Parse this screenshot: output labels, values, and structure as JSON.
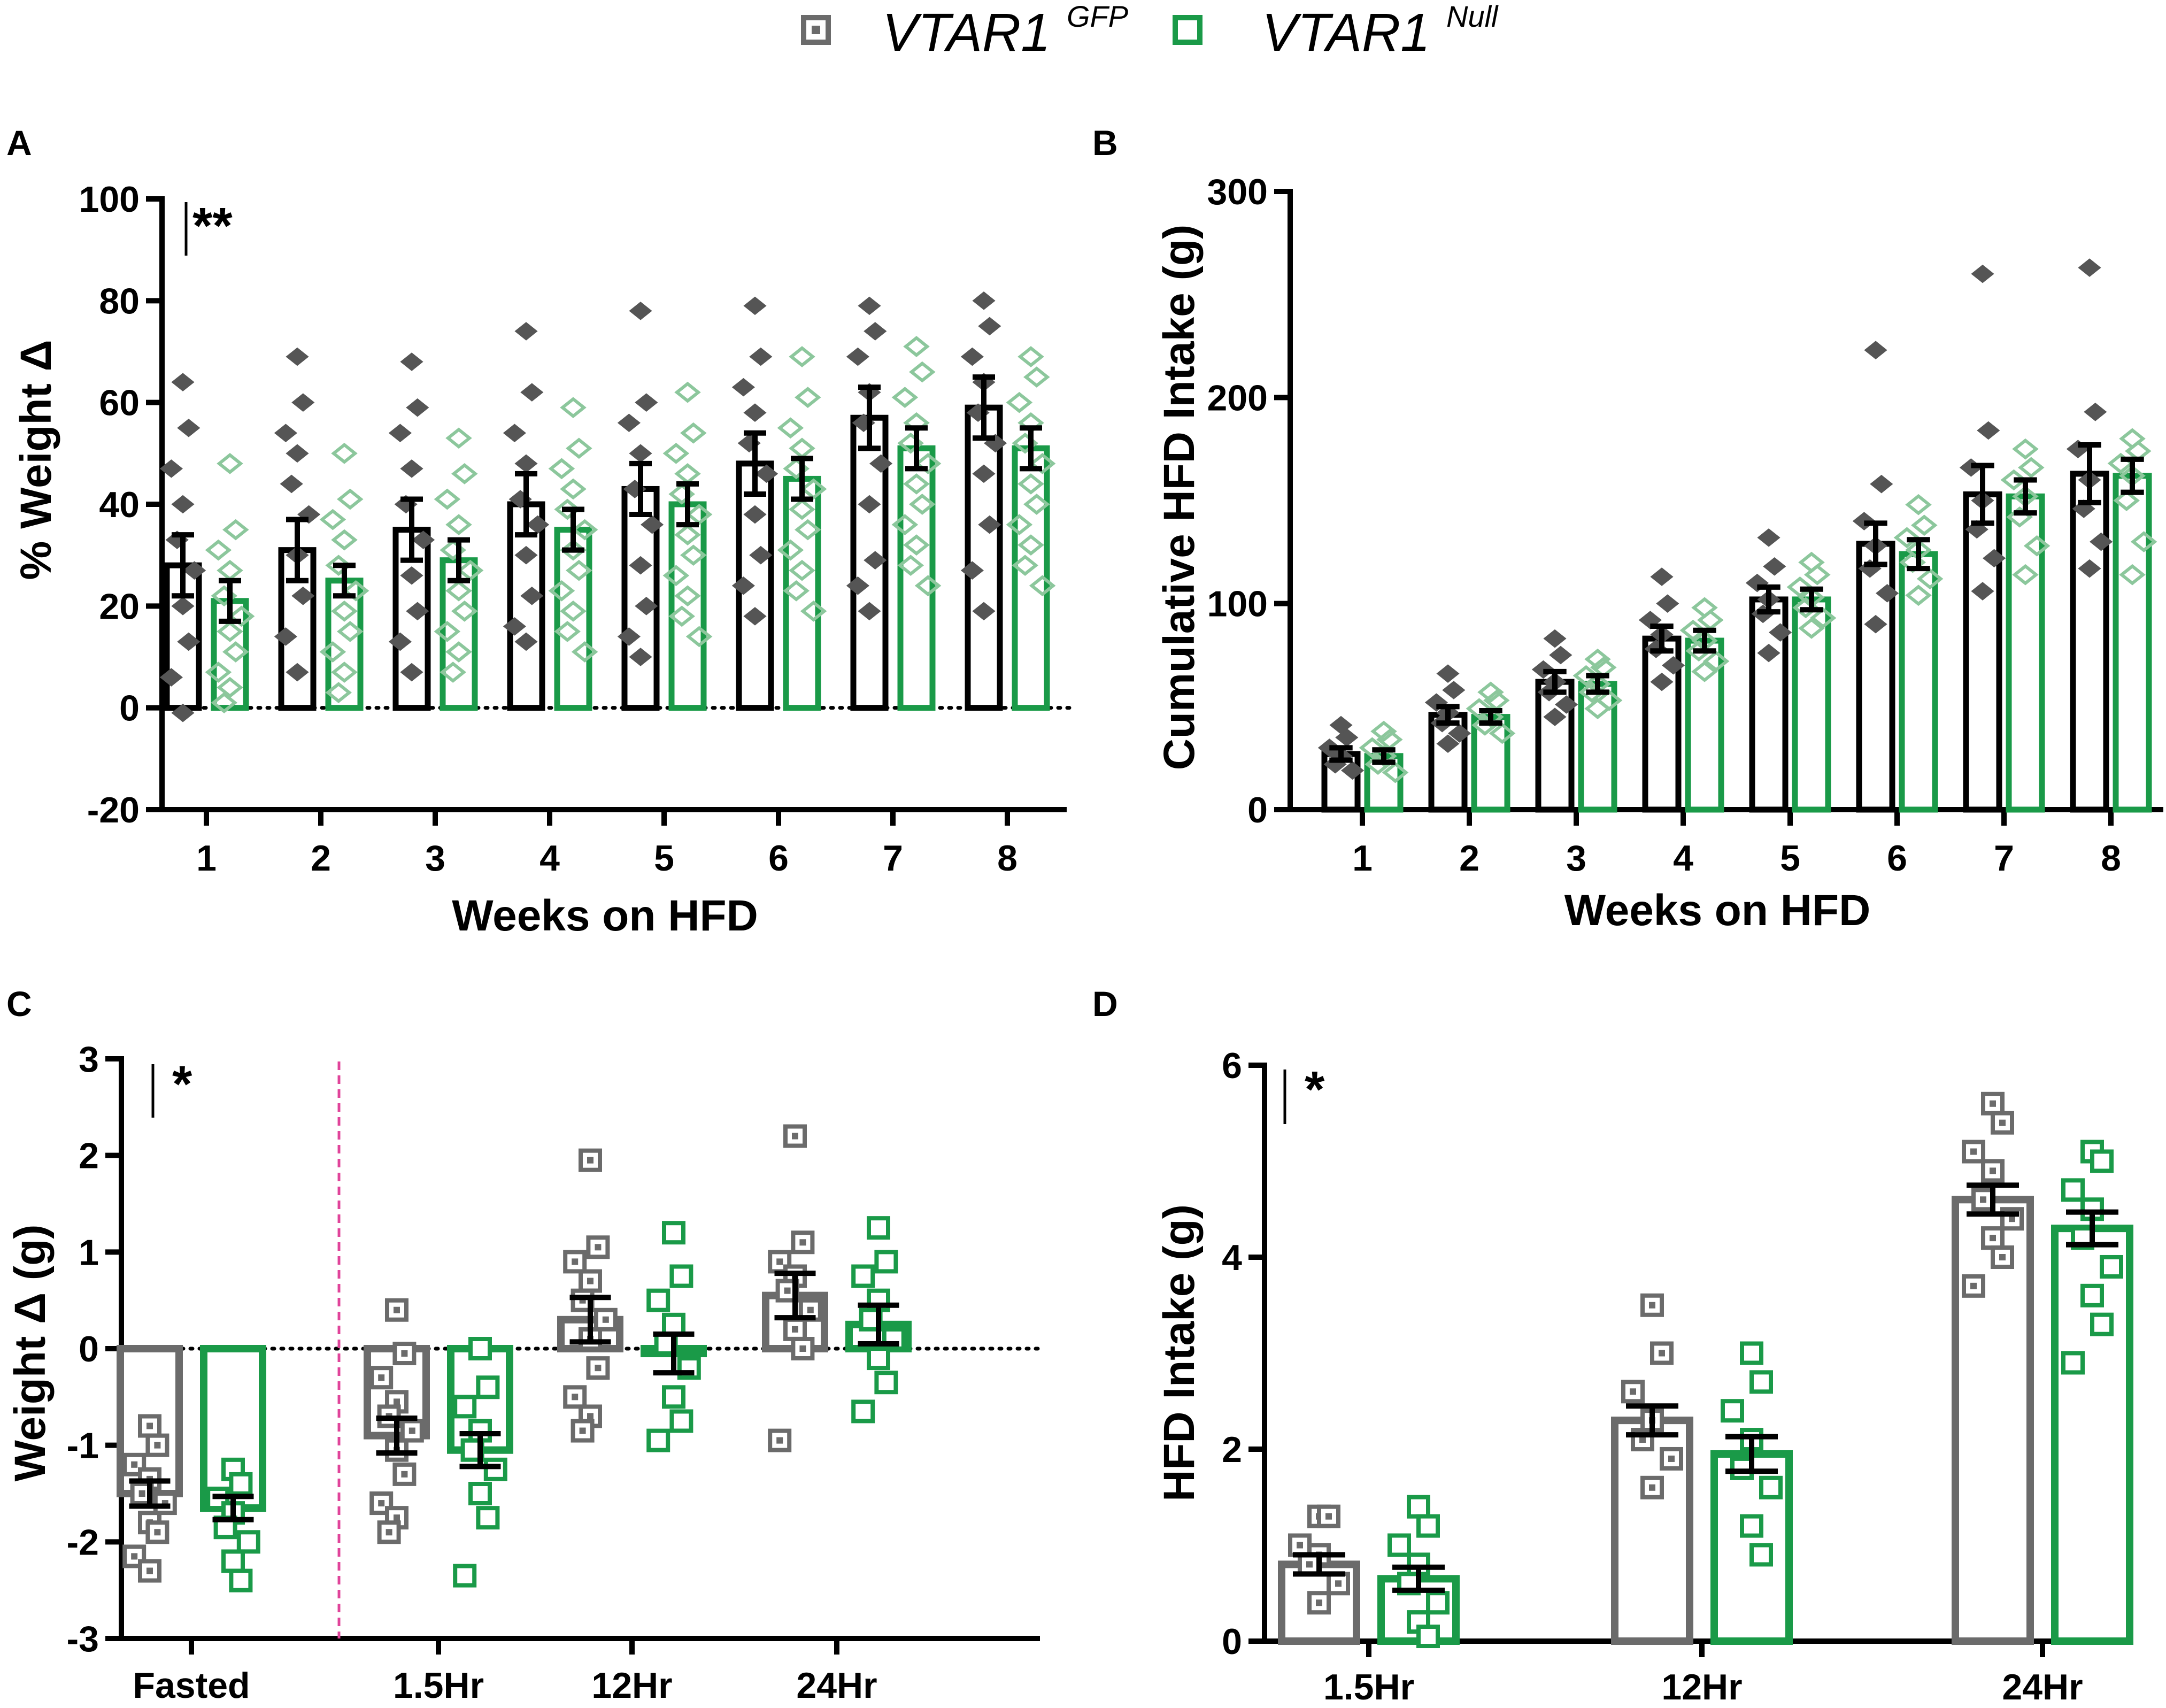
{
  "legend": {
    "items": [
      {
        "name": "VTAR1",
        "sup": "GFP",
        "color": "#6b6b6b"
      },
      {
        "name": "VTAR1",
        "sup": "Null",
        "color": "#1a9a48"
      }
    ]
  },
  "colors": {
    "gfp": "#6b6b6b",
    "null": "#1a9a48",
    "gfp_dot": "#555555",
    "null_dot": "#8cc79c",
    "separator": "#e0449a"
  },
  "chart_data": [
    {
      "panel": "A",
      "type": "bar",
      "ylabel": "% Weight Δ",
      "xlabel": "Weeks on HFD",
      "ylim": [
        -20,
        100
      ],
      "yticks": [
        -20,
        0,
        20,
        40,
        60,
        80,
        100
      ],
      "significance": "**",
      "zero_line": true,
      "categories": [
        "1",
        "2",
        "3",
        "4",
        "5",
        "6",
        "7",
        "8"
      ],
      "series": [
        {
          "name": "VTAR1 GFP",
          "style": "filled",
          "values": [
            28,
            31,
            35,
            40,
            43,
            48,
            57,
            59
          ],
          "errors": [
            6,
            6,
            6,
            6,
            5,
            6,
            6,
            6
          ],
          "points": [
            [
              64,
              55,
              47,
              40,
              33,
              27,
              20,
              13,
              6,
              -1
            ],
            [
              69,
              60,
              54,
              50,
              44,
              38,
              30,
              22,
              14,
              7
            ],
            [
              68,
              59,
              54,
              47,
              40,
              33,
              26,
              19,
              13,
              7
            ],
            [
              74,
              62,
              54,
              48,
              41,
              36,
              30,
              22,
              16,
              13
            ],
            [
              78,
              60,
              56,
              50,
              43,
              36,
              28,
              20,
              14,
              10
            ],
            [
              79,
              69,
              63,
              58,
              52,
              46,
              38,
              30,
              24,
              18
            ],
            [
              79,
              74,
              69,
              62,
              56,
              48,
              40,
              29,
              24,
              19
            ],
            [
              80,
              75,
              69,
              64,
              58,
              52,
              46,
              36,
              27,
              19
            ]
          ]
        },
        {
          "name": "VTAR1 Null",
          "style": "filled",
          "values": [
            21,
            25,
            29,
            35,
            40,
            45,
            51,
            51
          ],
          "errors": [
            4,
            3,
            4,
            4,
            4,
            4,
            4,
            4
          ],
          "points": [
            [
              48,
              35,
              31,
              27,
              22,
              18,
              15,
              11,
              7,
              4,
              1
            ],
            [
              50,
              41,
              37,
              33,
              28,
              23,
              19,
              15,
              11,
              7,
              3
            ],
            [
              53,
              46,
              41,
              36,
              31,
              27,
              23,
              19,
              15,
              11,
              7
            ],
            [
              59,
              51,
              47,
              43,
              39,
              35,
              31,
              27,
              23,
              19,
              15,
              11
            ],
            [
              62,
              54,
              50,
              46,
              42,
              38,
              34,
              30,
              26,
              22,
              18,
              14
            ],
            [
              69,
              61,
              55,
              51,
              47,
              43,
              39,
              35,
              31,
              27,
              23,
              19
            ],
            [
              71,
              66,
              61,
              56,
              52,
              48,
              44,
              40,
              36,
              32,
              28,
              24
            ],
            [
              69,
              65,
              60,
              56,
              52,
              48,
              44,
              40,
              36,
              32,
              28,
              24
            ]
          ]
        }
      ]
    },
    {
      "panel": "B",
      "type": "bar",
      "ylabel": "Cumulative HFD Intake (g)",
      "xlabel": "Weeks on HFD",
      "ylim": [
        0,
        300
      ],
      "yticks": [
        0,
        100,
        200,
        300
      ],
      "categories": [
        "1",
        "2",
        "3",
        "4",
        "5",
        "6",
        "7",
        "8"
      ],
      "series": [
        {
          "name": "VTAR1 GFP",
          "style": "filled",
          "values": [
            27,
            46,
            62,
            83,
            102,
            129,
            153,
            163
          ],
          "errors": [
            3,
            4,
            5,
            6,
            6,
            10,
            14,
            14
          ],
          "points": [
            [
              41,
              35,
              30,
              26,
              22,
              19
            ],
            [
              66,
              58,
              52,
              47,
              42,
              37,
              32
            ],
            [
              83,
              75,
              68,
              62,
              57,
              51,
              45
            ],
            [
              113,
              100,
              92,
              85,
              78,
              70,
              62
            ],
            [
              132,
              118,
              110,
              102,
              95,
              86,
              76
            ],
            [
              223,
              158,
              140,
              128,
              117,
              105,
              90
            ],
            [
              260,
              184,
              166,
              150,
              136,
              122,
              106
            ],
            [
              263,
              193,
              175,
              160,
              146,
              130,
              117
            ]
          ]
        },
        {
          "name": "VTAR1 Null",
          "style": "filled",
          "values": [
            26,
            45,
            61,
            82,
            102,
            124,
            152,
            162
          ],
          "errors": [
            3,
            3,
            4,
            5,
            5,
            7,
            8,
            8
          ],
          "points": [
            [
              38,
              34,
              30,
              26,
              22,
              18
            ],
            [
              57,
              53,
              49,
              45,
              41,
              37
            ],
            [
              73,
              69,
              65,
              61,
              57,
              53,
              49
            ],
            [
              98,
              92,
              87,
              82,
              77,
              72,
              67
            ],
            [
              120,
              114,
              108,
              103,
              98,
              93,
              88
            ],
            [
              148,
              138,
              132,
              126,
              120,
              112,
              104
            ],
            [
              175,
              166,
              160,
              152,
              142,
              128,
              114
            ],
            [
              180,
              174,
              168,
              162,
              150,
              130,
              114
            ]
          ]
        }
      ]
    },
    {
      "panel": "C",
      "type": "bar",
      "ylabel": "Weight Δ (g)",
      "xlabel": "",
      "ylim": [
        -3,
        3
      ],
      "yticks": [
        -3,
        -2,
        -1,
        0,
        1,
        2,
        3
      ],
      "significance": "*",
      "zero_line": true,
      "categories": [
        "Fasted",
        "1.5Hr",
        "12Hr",
        "24Hr"
      ],
      "series": [
        {
          "name": "VTAR1 GFP",
          "style": "open",
          "values": [
            -1.5,
            -0.9,
            0.3,
            0.55
          ],
          "errors": [
            0.13,
            0.18,
            0.23,
            0.23
          ],
          "points": [
            [
              -0.8,
              -1.0,
              -1.2,
              -1.35,
              -1.5,
              -1.6,
              -1.8,
              -1.9,
              -2.15,
              -2.3
            ],
            [
              0.4,
              -0.05,
              -0.3,
              -0.55,
              -0.7,
              -0.85,
              -1.05,
              -1.3,
              -1.6,
              -1.75,
              -1.9
            ],
            [
              1.95,
              1.05,
              0.9,
              0.7,
              0.5,
              0.3,
              0.1,
              -0.2,
              -0.5,
              -0.7,
              -0.85
            ],
            [
              2.2,
              1.1,
              0.9,
              0.75,
              0.6,
              0.4,
              0.2,
              0.0,
              -0.95
            ]
          ]
        },
        {
          "name": "VTAR1 Null",
          "style": "open",
          "values": [
            -1.65,
            -1.05,
            -0.05,
            0.25
          ],
          "errors": [
            0.12,
            0.17,
            0.2,
            0.2
          ],
          "points": [
            [
              -1.25,
              -1.4,
              -1.55,
              -1.7,
              -1.85,
              -2.0,
              -2.2,
              -2.4
            ],
            [
              0.0,
              -0.4,
              -0.6,
              -0.85,
              -1.05,
              -1.25,
              -1.5,
              -1.75,
              -2.35
            ],
            [
              1.2,
              0.75,
              0.5,
              0.25,
              0.05,
              -0.2,
              -0.5,
              -0.75,
              -0.95
            ],
            [
              1.25,
              0.9,
              0.75,
              0.5,
              0.3,
              0.1,
              -0.1,
              -0.35,
              -0.65
            ]
          ]
        }
      ]
    },
    {
      "panel": "D",
      "type": "bar",
      "ylabel": "HFD Intake (g)",
      "xlabel": "",
      "ylim": [
        0,
        6
      ],
      "yticks": [
        0,
        2,
        4,
        6
      ],
      "significance": "*",
      "categories": [
        "1.5Hr",
        "12Hr",
        "24Hr"
      ],
      "series": [
        {
          "name": "VTAR1 GFP",
          "style": "open",
          "values": [
            0.8,
            2.3,
            4.6
          ],
          "errors": [
            0.1,
            0.15,
            0.15
          ],
          "points": [
            [
              1.3,
              1.3,
              1.0,
              0.9,
              0.8,
              0.6,
              0.4
            ],
            [
              3.5,
              3.0,
              2.6,
              2.3,
              2.1,
              1.9,
              1.6
            ],
            [
              5.6,
              5.4,
              5.1,
              4.9,
              4.6,
              4.4,
              4.2,
              4.0,
              3.7
            ]
          ]
        },
        {
          "name": "VTAR1 Null",
          "style": "open",
          "values": [
            0.65,
            1.95,
            4.3
          ],
          "errors": [
            0.12,
            0.18,
            0.17
          ],
          "points": [
            [
              1.4,
              1.2,
              1.0,
              0.8,
              0.6,
              0.4,
              0.2,
              0.05
            ],
            [
              3.0,
              2.7,
              2.4,
              2.1,
              1.8,
              1.6,
              1.2,
              0.9
            ],
            [
              5.1,
              5.0,
              4.7,
              4.5,
              4.2,
              3.9,
              3.6,
              3.3,
              2.9
            ]
          ]
        }
      ]
    }
  ]
}
